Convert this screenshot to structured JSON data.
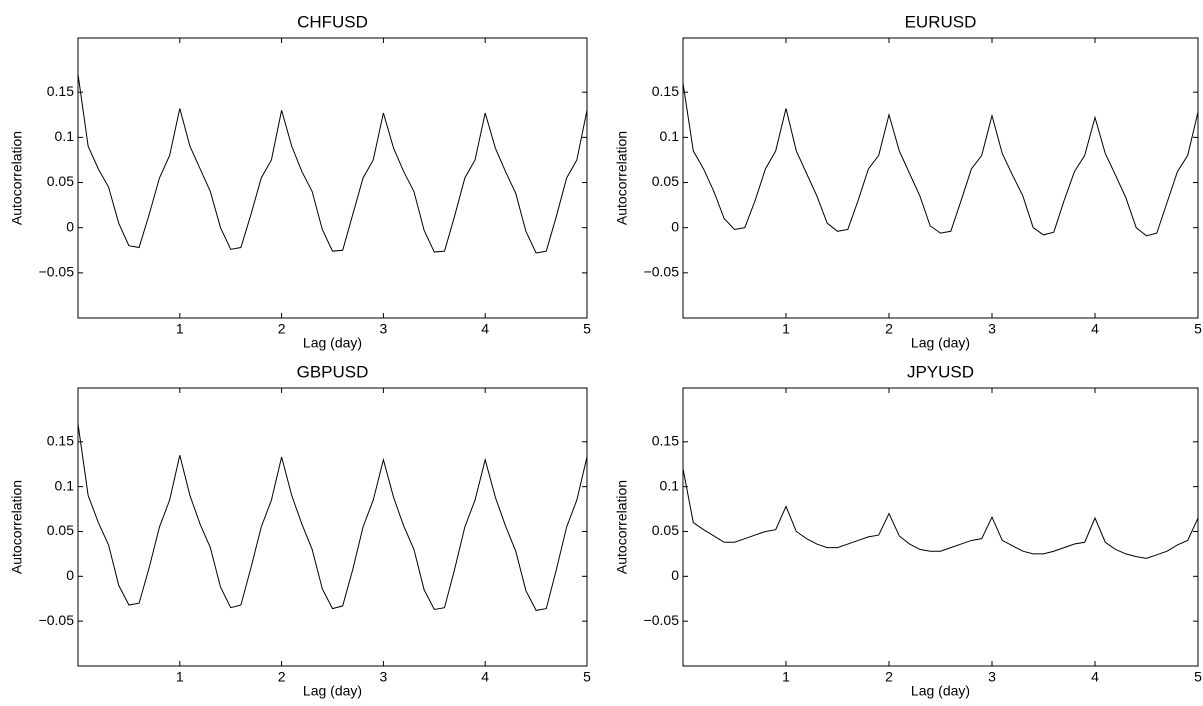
{
  "chart_data": [
    {
      "type": "line",
      "title": "CHFUSD",
      "x_label": "Lag (day)",
      "y_label": "Autocorrelation",
      "color": "#000000",
      "x": [
        0,
        0.1,
        0.2,
        0.3,
        0.4,
        0.5,
        0.6,
        0.7,
        0.8,
        0.9,
        1,
        1.1,
        1.2,
        1.3,
        1.4,
        1.5,
        1.6,
        1.7,
        1.8,
        1.9,
        2,
        2.1,
        2.2,
        2.3,
        2.4,
        2.5,
        2.6,
        2.7,
        2.8,
        2.9,
        3,
        3.1,
        3.2,
        3.3,
        3.4,
        3.5,
        3.6,
        3.7,
        3.8,
        3.9,
        4,
        4.1,
        4.2,
        4.3,
        4.4,
        4.5,
        4.6,
        4.7,
        4.8,
        4.9,
        5
      ],
      "values": [
        0.17,
        0.09,
        0.065,
        0.045,
        0.005,
        -0.02,
        -0.022,
        0.015,
        0.055,
        0.08,
        0.132,
        0.09,
        0.065,
        0.04,
        0.0,
        -0.024,
        -0.022,
        0.015,
        0.055,
        0.075,
        0.13,
        0.09,
        0.062,
        0.04,
        -0.002,
        -0.026,
        -0.025,
        0.015,
        0.055,
        0.075,
        0.127,
        0.088,
        0.062,
        0.04,
        -0.003,
        -0.027,
        -0.026,
        0.013,
        0.055,
        0.075,
        0.127,
        0.088,
        0.062,
        0.038,
        -0.004,
        -0.028,
        -0.026,
        0.013,
        0.055,
        0.075,
        0.13
      ],
      "xlim": [
        0,
        5
      ],
      "xticks": [
        1,
        2,
        3,
        4,
        5
      ],
      "ylim": [
        -0.1,
        0.21
      ],
      "yticks": [
        {
          "value": -0.05,
          "label": "−0.05"
        },
        0,
        0.05,
        0.1,
        0.15
      ]
    },
    {
      "type": "line",
      "title": "EURUSD",
      "x_label": "Lag (day)",
      "y_label": "Autocorrelation",
      "color": "#000000",
      "x": [
        0,
        0.1,
        0.2,
        0.3,
        0.4,
        0.5,
        0.6,
        0.7,
        0.8,
        0.9,
        1,
        1.1,
        1.2,
        1.3,
        1.4,
        1.5,
        1.6,
        1.7,
        1.8,
        1.9,
        2,
        2.1,
        2.2,
        2.3,
        2.4,
        2.5,
        2.6,
        2.7,
        2.8,
        2.9,
        3,
        3.1,
        3.2,
        3.3,
        3.4,
        3.5,
        3.6,
        3.7,
        3.8,
        3.9,
        4,
        4.1,
        4.2,
        4.3,
        4.4,
        4.5,
        4.6,
        4.7,
        4.8,
        4.9,
        5
      ],
      "values": [
        0.16,
        0.085,
        0.065,
        0.04,
        0.01,
        -0.002,
        0.0,
        0.03,
        0.065,
        0.085,
        0.132,
        0.085,
        0.06,
        0.035,
        0.005,
        -0.004,
        -0.002,
        0.03,
        0.065,
        0.08,
        0.125,
        0.085,
        0.06,
        0.035,
        0.002,
        -0.006,
        -0.004,
        0.03,
        0.065,
        0.08,
        0.124,
        0.082,
        0.058,
        0.035,
        0.0,
        -0.008,
        -0.005,
        0.03,
        0.062,
        0.08,
        0.122,
        0.082,
        0.058,
        0.033,
        0.0,
        -0.009,
        -0.006,
        0.028,
        0.062,
        0.08,
        0.128
      ],
      "xlim": [
        0,
        5
      ],
      "xticks": [
        1,
        2,
        3,
        4,
        5
      ],
      "ylim": [
        -0.1,
        0.21
      ],
      "yticks": [
        {
          "value": -0.05,
          "label": "−0.05"
        },
        0,
        0.05,
        0.1,
        0.15
      ]
    },
    {
      "type": "line",
      "title": "GBPUSD",
      "x_label": "Lag (day)",
      "y_label": "Autocorrelation",
      "color": "#000000",
      "x": [
        0,
        0.1,
        0.2,
        0.3,
        0.4,
        0.5,
        0.6,
        0.7,
        0.8,
        0.9,
        1,
        1.1,
        1.2,
        1.3,
        1.4,
        1.5,
        1.6,
        1.7,
        1.8,
        1.9,
        2,
        2.1,
        2.2,
        2.3,
        2.4,
        2.5,
        2.6,
        2.7,
        2.8,
        2.9,
        3,
        3.1,
        3.2,
        3.3,
        3.4,
        3.5,
        3.6,
        3.7,
        3.8,
        3.9,
        4,
        4.1,
        4.2,
        4.3,
        4.4,
        4.5,
        4.6,
        4.7,
        4.8,
        4.9,
        5
      ],
      "values": [
        0.17,
        0.09,
        0.06,
        0.035,
        -0.01,
        -0.032,
        -0.03,
        0.01,
        0.055,
        0.085,
        0.135,
        0.09,
        0.058,
        0.032,
        -0.012,
        -0.035,
        -0.032,
        0.01,
        0.055,
        0.085,
        0.133,
        0.09,
        0.058,
        0.03,
        -0.014,
        -0.036,
        -0.033,
        0.008,
        0.055,
        0.085,
        0.13,
        0.088,
        0.056,
        0.03,
        -0.015,
        -0.037,
        -0.035,
        0.008,
        0.055,
        0.085,
        0.13,
        0.088,
        0.056,
        0.028,
        -0.016,
        -0.038,
        -0.036,
        0.008,
        0.055,
        0.085,
        0.133
      ],
      "xlim": [
        0,
        5
      ],
      "xticks": [
        1,
        2,
        3,
        4,
        5
      ],
      "ylim": [
        -0.1,
        0.21
      ],
      "yticks": [
        {
          "value": -0.05,
          "label": "−0.05"
        },
        0,
        0.05,
        0.1,
        0.15
      ]
    },
    {
      "type": "line",
      "title": "JPYUSD",
      "x_label": "Lag (day)",
      "y_label": "Autocorrelation",
      "color": "#000000",
      "x": [
        0,
        0.1,
        0.2,
        0.3,
        0.4,
        0.5,
        0.6,
        0.7,
        0.8,
        0.9,
        1,
        1.1,
        1.2,
        1.3,
        1.4,
        1.5,
        1.6,
        1.7,
        1.8,
        1.9,
        2,
        2.1,
        2.2,
        2.3,
        2.4,
        2.5,
        2.6,
        2.7,
        2.8,
        2.9,
        3,
        3.1,
        3.2,
        3.3,
        3.4,
        3.5,
        3.6,
        3.7,
        3.8,
        3.9,
        4,
        4.1,
        4.2,
        4.3,
        4.4,
        4.5,
        4.6,
        4.7,
        4.8,
        4.9,
        5
      ],
      "values": [
        0.12,
        0.06,
        0.052,
        0.045,
        0.038,
        0.038,
        0.042,
        0.046,
        0.05,
        0.052,
        0.078,
        0.05,
        0.042,
        0.036,
        0.032,
        0.032,
        0.036,
        0.04,
        0.044,
        0.046,
        0.07,
        0.045,
        0.036,
        0.03,
        0.028,
        0.028,
        0.032,
        0.036,
        0.04,
        0.042,
        0.066,
        0.04,
        0.034,
        0.028,
        0.025,
        0.025,
        0.028,
        0.032,
        0.036,
        0.038,
        0.065,
        0.038,
        0.03,
        0.025,
        0.022,
        0.02,
        0.024,
        0.028,
        0.035,
        0.04,
        0.065
      ],
      "xlim": [
        0,
        5
      ],
      "xticks": [
        1,
        2,
        3,
        4,
        5
      ],
      "ylim": [
        -0.1,
        0.21
      ],
      "yticks": [
        {
          "value": -0.05,
          "label": "−0.05"
        },
        0,
        0.05,
        0.1,
        0.15
      ]
    }
  ]
}
